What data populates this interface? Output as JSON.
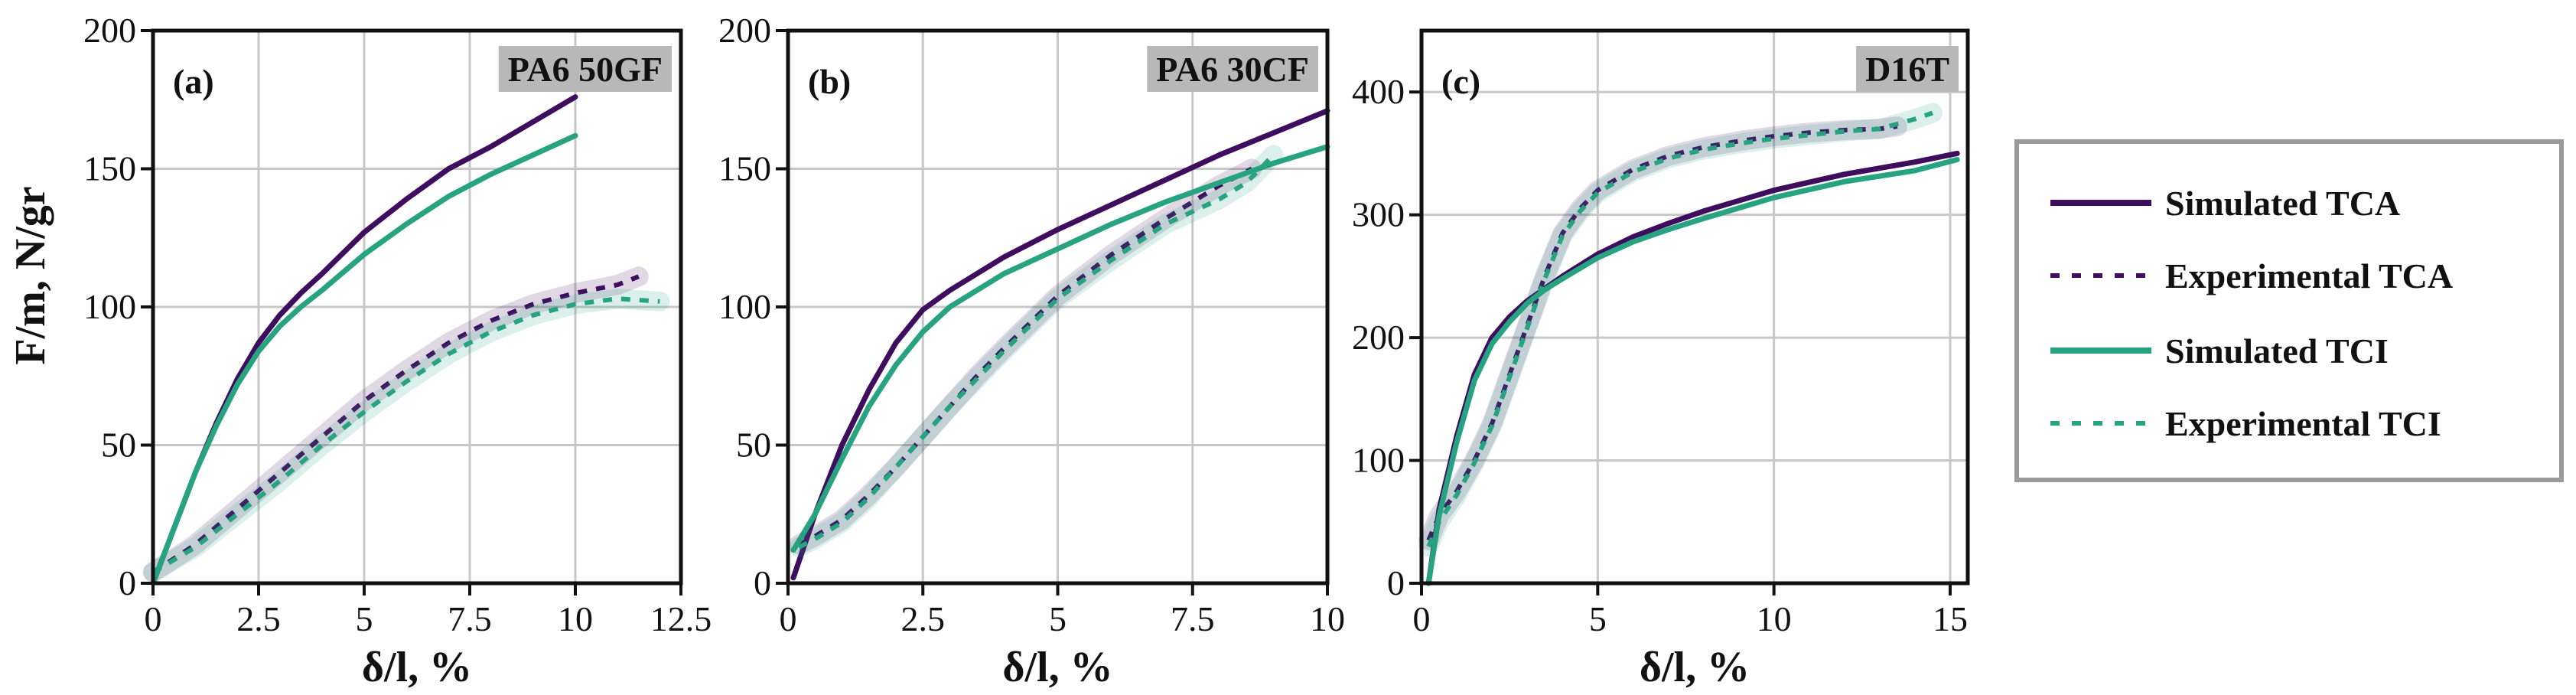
{
  "colors": {
    "tca": "#3f0d5e",
    "tci": "#27a381",
    "grid": "#c8c8c8",
    "titleBox": "#b8b8b8"
  },
  "shared_ylabel": "F/m, N/gr",
  "legend": {
    "entries": [
      {
        "label": "Simulated TCA",
        "series": "tca",
        "style": "solid"
      },
      {
        "label": "Experimental TCA",
        "series": "tca",
        "style": "dashed"
      },
      {
        "label": "Simulated TCI",
        "series": "tci",
        "style": "solid"
      },
      {
        "label": "Experimental TCI",
        "series": "tci",
        "style": "dashed"
      }
    ]
  },
  "chart_data": [
    {
      "type": "line",
      "letter": "(a)",
      "title": "PA6 50GF",
      "xlabel": "δ/l, %",
      "ylabel": "F/m, N/gr",
      "xlim": [
        0,
        12.5
      ],
      "ylim": [
        0,
        200
      ],
      "xticks": [
        0,
        2.5,
        5,
        7.5,
        10,
        12.5
      ],
      "xtick_labels": [
        "0",
        "2.5",
        "5",
        "7.5",
        "10",
        "12.5"
      ],
      "yticks": [
        0,
        50,
        100,
        150,
        200
      ],
      "ytick_labels": [
        "0",
        "50",
        "100",
        "150",
        "200"
      ],
      "series": [
        {
          "name": "Simulated TCA",
          "color_key": "tca",
          "style": "solid",
          "x": [
            0,
            0.5,
            1,
            1.5,
            2,
            2.5,
            3,
            3.5,
            4,
            5,
            6,
            7,
            8,
            9,
            10
          ],
          "y": [
            0,
            20,
            40,
            58,
            74,
            87,
            97,
            105,
            112,
            127,
            139,
            150,
            158,
            167,
            176
          ]
        },
        {
          "name": "Experimental TCA",
          "color_key": "tca",
          "style": "dashed",
          "x": [
            0,
            1,
            2,
            3,
            4,
            5,
            6,
            7,
            8,
            9,
            10,
            11,
            11.5
          ],
          "y": [
            4,
            14,
            27,
            40,
            53,
            66,
            77,
            87,
            95,
            101,
            105,
            108,
            111
          ]
        },
        {
          "name": "Simulated TCI",
          "color_key": "tci",
          "style": "solid",
          "x": [
            0,
            0.5,
            1,
            1.5,
            2,
            2.5,
            3,
            3.5,
            4,
            5,
            6,
            7,
            8,
            9,
            10
          ],
          "y": [
            0,
            20,
            40,
            57,
            72,
            84,
            93,
            100,
            106,
            119,
            130,
            140,
            148,
            155,
            162
          ]
        },
        {
          "name": "Experimental TCI",
          "color_key": "tci",
          "style": "dashed",
          "x": [
            0,
            1,
            2,
            3,
            4,
            5,
            6,
            7,
            8,
            9,
            10,
            11,
            12
          ],
          "y": [
            4,
            13,
            25,
            37,
            50,
            62,
            73,
            83,
            91,
            97,
            101,
            103,
            102
          ]
        }
      ]
    },
    {
      "type": "line",
      "letter": "(b)",
      "title": "PA6 30CF",
      "xlabel": "δ/l, %",
      "ylabel": "",
      "xlim": [
        0,
        10
      ],
      "ylim": [
        0,
        200
      ],
      "xticks": [
        0,
        2.5,
        5,
        7.5,
        10
      ],
      "xtick_labels": [
        "0",
        "2.5",
        "5",
        "7.5",
        "10"
      ],
      "yticks": [
        0,
        50,
        100,
        150,
        200
      ],
      "ytick_labels": [
        "0",
        "50",
        "100",
        "150",
        "200"
      ],
      "series": [
        {
          "name": "Simulated TCA",
          "color_key": "tca",
          "style": "solid",
          "x": [
            0.1,
            0.5,
            1,
            1.5,
            2,
            2.5,
            3,
            4,
            5,
            6,
            7,
            8,
            9,
            10
          ],
          "y": [
            2,
            25,
            50,
            70,
            87,
            99,
            106,
            118,
            128,
            137,
            146,
            155,
            163,
            171
          ]
        },
        {
          "name": "Experimental TCA",
          "color_key": "tca",
          "style": "dashed",
          "x": [
            0.2,
            0.5,
            1,
            1.5,
            2,
            2.5,
            3,
            3.5,
            4,
            5,
            6,
            7,
            7.5,
            8,
            8.6
          ],
          "y": [
            14,
            17,
            23,
            32,
            42,
            53,
            64,
            75,
            85,
            104,
            119,
            132,
            138,
            144,
            150
          ]
        },
        {
          "name": "Simulated TCI",
          "color_key": "tci",
          "style": "solid",
          "x": [
            0.1,
            0.5,
            1,
            1.5,
            2,
            2.5,
            3,
            4,
            5,
            6,
            7,
            8,
            9,
            10
          ],
          "y": [
            12,
            25,
            45,
            64,
            79,
            91,
            100,
            112,
            121,
            130,
            138,
            145,
            152,
            158
          ]
        },
        {
          "name": "Experimental TCI",
          "color_key": "tci",
          "style": "dashed",
          "x": [
            0.2,
            0.5,
            1,
            1.5,
            2,
            2.5,
            3,
            3.5,
            4,
            5,
            6,
            7,
            8,
            8.5,
            9
          ],
          "y": [
            13,
            16,
            22,
            31,
            42,
            53,
            64,
            74,
            84,
            103,
            117,
            130,
            139,
            145,
            155
          ]
        }
      ]
    },
    {
      "type": "line",
      "letter": "(c)",
      "title": "D16T",
      "xlabel": "δ/l, %",
      "ylabel": "",
      "xlim": [
        0,
        15.5
      ],
      "ylim": [
        0,
        450
      ],
      "xticks": [
        0,
        5,
        10,
        15
      ],
      "xtick_labels": [
        "0",
        "5",
        "10",
        "15"
      ],
      "yticks": [
        0,
        100,
        200,
        300,
        400
      ],
      "ytick_labels": [
        "0",
        "100",
        "200",
        "300",
        "400"
      ],
      "series": [
        {
          "name": "Simulated TCA",
          "color_key": "tca",
          "style": "solid",
          "x": [
            0.2,
            0.5,
            1,
            1.5,
            2,
            2.5,
            3,
            3.5,
            4,
            5,
            6,
            7,
            8,
            10,
            12,
            14,
            15.2
          ],
          "y": [
            0,
            60,
            120,
            170,
            200,
            217,
            230,
            240,
            250,
            268,
            282,
            293,
            303,
            320,
            333,
            343,
            350
          ]
        },
        {
          "name": "Experimental TCA",
          "color_key": "tca",
          "style": "dashed",
          "x": [
            0.2,
            0.5,
            1,
            1.5,
            2,
            2.5,
            3,
            3.5,
            4,
            4.5,
            5,
            6,
            7,
            8,
            9,
            10,
            11,
            12,
            13,
            13.5
          ],
          "y": [
            35,
            55,
            75,
            100,
            130,
            170,
            210,
            250,
            285,
            305,
            320,
            337,
            348,
            355,
            360,
            364,
            367,
            369,
            370,
            372
          ]
        },
        {
          "name": "Simulated TCI",
          "color_key": "tci",
          "style": "solid",
          "x": [
            0.2,
            0.5,
            1,
            1.5,
            2,
            2.5,
            3,
            3.5,
            4,
            5,
            6,
            7,
            8,
            10,
            12,
            14,
            15.2
          ],
          "y": [
            0,
            55,
            115,
            165,
            195,
            213,
            228,
            239,
            248,
            265,
            278,
            288,
            297,
            314,
            327,
            336,
            345
          ]
        },
        {
          "name": "Experimental TCI",
          "color_key": "tci",
          "style": "dashed",
          "x": [
            0.2,
            0.5,
            1,
            1.5,
            2,
            2.5,
            3,
            3.5,
            4,
            4.5,
            5,
            6,
            7,
            8,
            9,
            10,
            11,
            12,
            13,
            14,
            14.5
          ],
          "y": [
            30,
            50,
            72,
            98,
            128,
            168,
            208,
            248,
            283,
            303,
            318,
            335,
            346,
            353,
            358,
            362,
            365,
            368,
            370,
            378,
            383
          ]
        }
      ]
    }
  ]
}
